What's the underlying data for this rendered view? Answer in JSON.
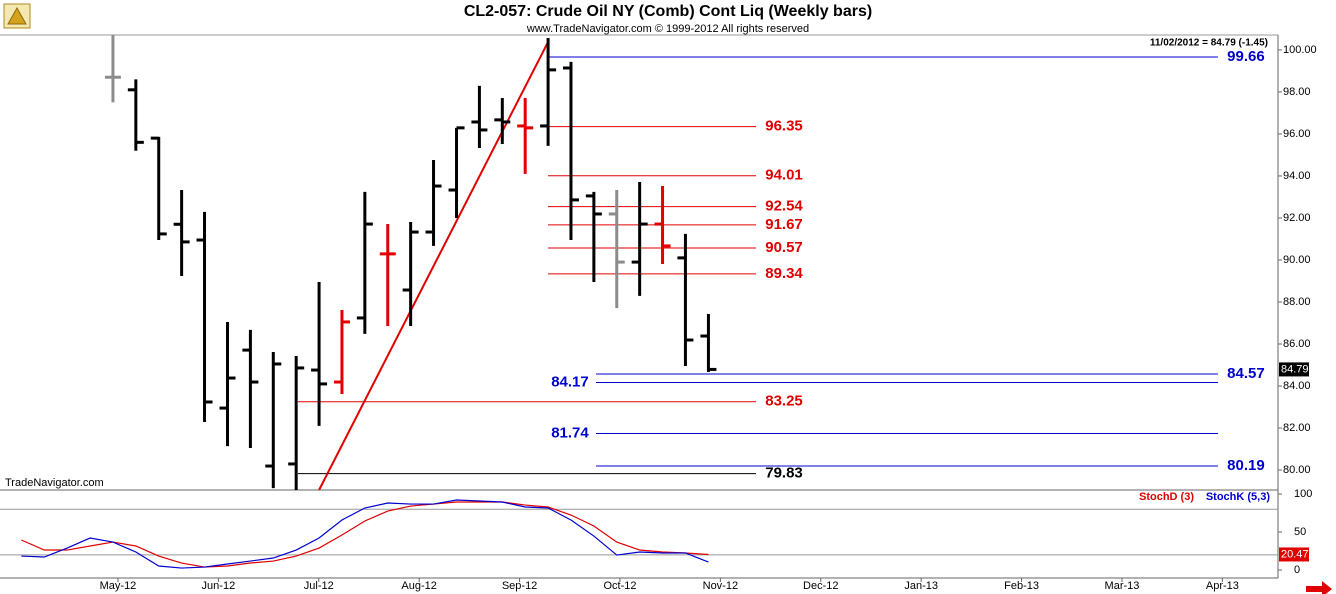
{
  "chart_data": [
    {
      "type": "ohlc",
      "title": "CL2-057:  Crude Oil NY (Comb) Cont Liq  (Weekly bars)",
      "subtitle": "www.TradeNavigator.com © 1999-2012 All rights reserved",
      "header_note": "11/02/2012 = 84.79 (-1.45)",
      "watermark": "TradeNavigator.com",
      "x": [
        4.95,
        5.178,
        5.406,
        5.634,
        5.862,
        6.091,
        6.319,
        6.547,
        6.775,
        7.003,
        7.231,
        7.459,
        7.687,
        7.915,
        8.143,
        8.372,
        8.6,
        8.828,
        9.056,
        9.284,
        9.512,
        9.74,
        9.968,
        10.196,
        10.424,
        10.652,
        10.881
      ],
      "open": [
        98.7,
        98.1,
        95.8,
        91.7,
        90.95,
        82.95,
        85.71,
        80.19,
        80.29,
        84.76,
        84.19,
        87.24,
        90.29,
        88.57,
        91.33,
        93.33,
        96.57,
        96.67,
        96.38,
        96.38,
        99.14,
        93.05,
        92.19,
        89.9,
        91.71,
        90.1,
        86.38
      ],
      "high": [
        100.7,
        98.6,
        95.86,
        93.33,
        92.29,
        87.05,
        86.67,
        85.62,
        85.43,
        88.95,
        87.62,
        93.24,
        91.71,
        91.81,
        94.76,
        96.29,
        98.29,
        97.71,
        97.71,
        100.57,
        99.43,
        93.24,
        93.33,
        93.71,
        93.52,
        91.24,
        87.43
      ],
      "low": [
        97.5,
        95.2,
        90.95,
        89.24,
        82.29,
        81.14,
        81.05,
        79.14,
        79.05,
        82.1,
        83.62,
        86.48,
        86.86,
        86.86,
        90.67,
        92.0,
        95.33,
        95.52,
        94.1,
        95.43,
        90.95,
        88.95,
        87.71,
        88.29,
        89.81,
        84.95,
        84.67
      ],
      "close": [
        98.7,
        95.6,
        91.24,
        90.86,
        83.24,
        84.38,
        84.19,
        85.05,
        84.86,
        84.1,
        87.05,
        91.71,
        90.29,
        91.33,
        93.52,
        96.29,
        96.19,
        96.57,
        96.29,
        99.05,
        92.86,
        92.19,
        89.9,
        91.71,
        90.67,
        86.19,
        84.79
      ],
      "bar_colors": [
        "#8c8c8c",
        "#000000",
        "#000000",
        "#000000",
        "#000000",
        "#000000",
        "#000000",
        "#000000",
        "#000000",
        "#000000",
        "#e00000",
        "#000000",
        "#e00000",
        "#000000",
        "#000000",
        "#000000",
        "#000000",
        "#000000",
        "#e00000",
        "#000000",
        "#000000",
        "#000000",
        "#8c8c8c",
        "#000000",
        "#e00000",
        "#000000",
        "#000000"
      ],
      "xlim": [
        3.825,
        16.554
      ],
      "ylim": [
        79.05,
        100.71
      ],
      "yticks": [
        {
          "value": 80,
          "label": "80.00"
        },
        {
          "value": 82,
          "label": "82.00"
        },
        {
          "value": 84,
          "label": "84.00"
        },
        {
          "value": 86,
          "label": "86.00"
        },
        {
          "value": 88,
          "label": "88.00"
        },
        {
          "value": 90,
          "label": "90.00"
        },
        {
          "value": 92,
          "label": "92.00"
        },
        {
          "value": 94,
          "label": "94.00"
        },
        {
          "value": 96,
          "label": "96.00"
        },
        {
          "value": 98,
          "label": "98.00"
        },
        {
          "value": 100,
          "label": "100.00"
        }
      ],
      "levels": [
        {
          "value": 99.66,
          "color": "#0000d0",
          "x_start": 9.283,
          "x_end": 15.956,
          "label_side": "right"
        },
        {
          "value": 96.35,
          "color": "#e00000",
          "x_start": 9.283,
          "x_end": 11.355,
          "label_side": "right"
        },
        {
          "value": 94.01,
          "color": "#e00000",
          "x_start": 9.283,
          "x_end": 11.355,
          "label_side": "right"
        },
        {
          "value": 92.54,
          "color": "#e00000",
          "x_start": 9.283,
          "x_end": 11.355,
          "label_side": "right"
        },
        {
          "value": 91.67,
          "color": "#e00000",
          "x_start": 9.283,
          "x_end": 11.355,
          "label_side": "right"
        },
        {
          "value": 90.57,
          "color": "#e00000",
          "x_start": 9.283,
          "x_end": 11.355,
          "label_side": "right"
        },
        {
          "value": 89.34,
          "color": "#e00000",
          "x_start": 9.283,
          "x_end": 11.355,
          "label_side": "right"
        },
        {
          "value": 84.57,
          "color": "#0000d0",
          "x_start": 9.761,
          "x_end": 15.956,
          "label_side": "right"
        },
        {
          "value": 84.17,
          "color": "#0000d0",
          "x_start": 9.761,
          "x_end": 15.956,
          "label_side": "left"
        },
        {
          "value": 83.25,
          "color": "#e00000",
          "x_start": 6.793,
          "x_end": 11.355,
          "label_side": "right"
        },
        {
          "value": 81.74,
          "color": "#0000d0",
          "x_start": 9.761,
          "x_end": 15.956,
          "label_side": "left"
        },
        {
          "value": 80.19,
          "color": "#0000d0",
          "x_start": 9.761,
          "x_end": 15.956,
          "label_side": "right"
        },
        {
          "value": 79.83,
          "color": "#000000",
          "x_start": 6.793,
          "x_end": 11.355,
          "label_side": "right"
        }
      ],
      "trendline": {
        "x": [
          7.003,
          9.284
        ],
        "y": [
          79.05,
          100.38
        ],
        "color": "#e00000"
      }
    },
    {
      "type": "line",
      "x": [
        4.038,
        4.266,
        4.494,
        4.722,
        4.95,
        5.178,
        5.406,
        5.634,
        5.862,
        6.091,
        6.319,
        6.547,
        6.775,
        7.003,
        7.231,
        7.459,
        7.687,
        7.915,
        8.143,
        8.372,
        8.6,
        8.828,
        9.056,
        9.284,
        9.512,
        9.74,
        9.968,
        10.196,
        10.424,
        10.652,
        10.881
      ],
      "series": [
        {
          "name": "StochD (3)",
          "color": "#e00000",
          "values": [
            39.5,
            26.3,
            26.3,
            31.6,
            36.8,
            31.6,
            18.4,
            9.2,
            3.9,
            5.3,
            9.2,
            11.8,
            18.4,
            28.9,
            46.1,
            64.5,
            77.6,
            84.2,
            86.8,
            89.5,
            89.5,
            89.5,
            85.5,
            82.9,
            72.4,
            57.9,
            36.8,
            26.3,
            23.7,
            22.4,
            20.47
          ]
        },
        {
          "name": "StochK (5,3)",
          "color": "#0000d0",
          "values": [
            18.4,
            17.1,
            28.9,
            42.1,
            36.8,
            23.7,
            5.3,
            2.6,
            3.9,
            7.9,
            11.8,
            15.8,
            26.3,
            42.1,
            65.8,
            81.6,
            88.2,
            86.8,
            86.8,
            92.1,
            90.8,
            89.5,
            82.9,
            81.6,
            65.8,
            44.7,
            19.7,
            23.7,
            22.4,
            22.4,
            10.5
          ]
        }
      ],
      "xlim": [
        3.825,
        16.554
      ],
      "xticks": [
        {
          "value": 5,
          "label": "May-12"
        },
        {
          "value": 6,
          "label": "Jun-12"
        },
        {
          "value": 7,
          "label": "Jul-12"
        },
        {
          "value": 8,
          "label": "Aug-12"
        },
        {
          "value": 9,
          "label": "Sep-12"
        },
        {
          "value": 10,
          "label": "Oct-12"
        },
        {
          "value": 11,
          "label": "Nov-12"
        },
        {
          "value": 12,
          "label": "Dec-12"
        },
        {
          "value": 13,
          "label": "Jan-13"
        },
        {
          "value": 14,
          "label": "Feb-13"
        },
        {
          "value": 15,
          "label": "Mar-13"
        },
        {
          "value": 16,
          "label": "Apr-13"
        }
      ],
      "ylim": [
        -10.5,
        105.3
      ],
      "yticks": [
        0,
        50,
        100
      ],
      "reference_lines": [
        80,
        20
      ]
    }
  ]
}
